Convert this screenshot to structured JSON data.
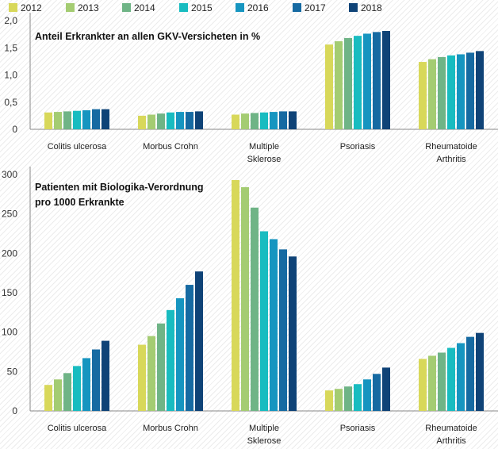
{
  "legend": {
    "years": [
      "2012",
      "2013",
      "2014",
      "2015",
      "2016",
      "2017",
      "2018"
    ],
    "colors": [
      "#d8d85a",
      "#a4cc72",
      "#6fb486",
      "#18bcc0",
      "#1695c0",
      "#166aa2",
      "#0f4377"
    ]
  },
  "chart_data": [
    {
      "type": "bar",
      "title": "Anteil Erkrankter an allen GKV-Versicheten in %",
      "categories": [
        [
          "Colitis ulcerosa"
        ],
        [
          "Morbus Crohn"
        ],
        [
          "Multiple",
          "Sklerose"
        ],
        [
          "Psoriasis"
        ],
        [
          "Rheumatoide",
          "Arthritis"
        ]
      ],
      "ylim": [
        0,
        2.0
      ],
      "yticks": [
        0,
        0.5,
        1.0,
        1.5,
        2.0
      ],
      "ytick_labels": [
        "0",
        "0,5",
        "1,0",
        "1,5",
        "2,0"
      ],
      "grid": false,
      "series": [
        {
          "name": "2012",
          "values": [
            0.31,
            0.25,
            0.27,
            1.56,
            1.24
          ]
        },
        {
          "name": "2013",
          "values": [
            0.32,
            0.27,
            0.29,
            1.62,
            1.29
          ]
        },
        {
          "name": "2014",
          "values": [
            0.33,
            0.29,
            0.3,
            1.68,
            1.33
          ]
        },
        {
          "name": "2015",
          "values": [
            0.34,
            0.31,
            0.31,
            1.72,
            1.36
          ]
        },
        {
          "name": "2016",
          "values": [
            0.35,
            0.32,
            0.32,
            1.76,
            1.38
          ]
        },
        {
          "name": "2017",
          "values": [
            0.37,
            0.32,
            0.33,
            1.79,
            1.41
          ]
        },
        {
          "name": "2018",
          "values": [
            0.37,
            0.33,
            0.33,
            1.81,
            1.44
          ]
        }
      ]
    },
    {
      "type": "bar",
      "title": [
        "Patienten mit Biologika-Verordnung",
        "pro 1000 Erkrankte"
      ],
      "categories": [
        [
          "Colitis ulcerosa"
        ],
        [
          "Morbus Crohn"
        ],
        [
          "Multiple",
          "Sklerose"
        ],
        [
          "Psoriasis"
        ],
        [
          "Rheumatoide",
          "Arthritis"
        ]
      ],
      "ylim": [
        0,
        300
      ],
      "yticks": [
        0,
        50,
        100,
        150,
        200,
        250,
        300
      ],
      "ytick_labels": [
        "0",
        "50",
        "100",
        "150",
        "200",
        "250",
        "300"
      ],
      "grid": false,
      "series": [
        {
          "name": "2012",
          "values": [
            33,
            84,
            293,
            26,
            66
          ]
        },
        {
          "name": "2013",
          "values": [
            40,
            95,
            284,
            28,
            70
          ]
        },
        {
          "name": "2014",
          "values": [
            48,
            111,
            258,
            31,
            74
          ]
        },
        {
          "name": "2015",
          "values": [
            57,
            128,
            228,
            34,
            80
          ]
        },
        {
          "name": "2016",
          "values": [
            67,
            143,
            218,
            40,
            86
          ]
        },
        {
          "name": "2017",
          "values": [
            78,
            160,
            205,
            47,
            94
          ]
        },
        {
          "name": "2018",
          "values": [
            89,
            177,
            196,
            55,
            99
          ]
        }
      ]
    }
  ]
}
